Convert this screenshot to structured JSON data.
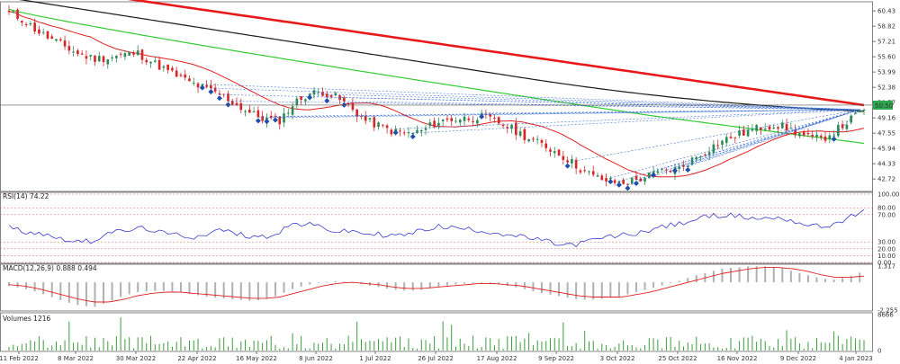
{
  "colors": {
    "up": "#2e8b57",
    "down": "#d62728",
    "ma_red": "#e8191a",
    "ma_black": "#1a1a1a",
    "ma_green": "#33cc33",
    "ma_red_thin": "#e02020",
    "rsi": "#3a3ad0",
    "macd_hist": "#b0b0b0",
    "macd_signal": "#e02020",
    "volume": "#3d9c3d",
    "grid": "#c8c8c8",
    "ref": "#e06060",
    "current_price_bg": "#2ea84e"
  },
  "chart_data": [
    {
      "type": "candlestick",
      "panel": "price",
      "y_ticks": [
        "60.43",
        "58.82",
        "57.21",
        "55.60",
        "53.99",
        "52.38",
        "50.77",
        "49.16",
        "47.55",
        "45.94",
        "44.33",
        "42.72"
      ],
      "ylim": [
        41.5,
        61.2
      ],
      "current_price": "50.50",
      "current_price_value": 50.5,
      "overlays": [
        "SMA red (long)",
        "SMA black",
        "SMA green",
        "SMA red (short)"
      ],
      "dates": [
        "11 Feb 2022",
        "8 Mar 2022",
        "30 Mar 2022",
        "22 Apr 2022",
        "16 May 2022",
        "8 Jun 2022",
        "1 Jul 2022",
        "26 Jul 2022",
        "17 Aug 2022",
        "9 Sep 2022",
        "3 Oct 2022",
        "25 Oct 2022",
        "16 Nov 2022",
        "9 Dec 2022",
        "4 Jan 2023"
      ],
      "close_anchors": [
        60.2,
        59.5,
        58.3,
        57.4,
        56.6,
        55.8,
        55.4,
        55.5,
        55.8,
        56.0,
        55.1,
        54.2,
        53.4,
        52.7,
        52.1,
        51.5,
        50.5,
        49.6,
        49.0,
        48.9,
        50.7,
        51.7,
        51.9,
        51.3,
        50.2,
        48.9,
        48.3,
        47.7,
        47.5,
        47.8,
        48.7,
        49.0,
        49.1,
        49.3,
        48.9,
        48.2,
        47.4,
        46.6,
        45.9,
        45.0,
        43.9,
        43.0,
        42.5,
        42.3,
        42.6,
        43.1,
        43.6,
        43.8,
        44.8,
        45.8,
        46.7,
        47.3,
        47.8,
        48.3,
        48.4,
        47.8,
        47.1,
        46.9,
        47.8,
        48.9,
        50.2
      ]
    },
    {
      "type": "line",
      "panel": "rsi",
      "title": "RSI(14) 74.22",
      "indicator": "RSI(14)",
      "last": "74.22",
      "y_ticks": [
        "100.00",
        "80.00",
        "70.00",
        "30.00",
        "20.00",
        "10.00",
        "0.00"
      ],
      "ylim": [
        0,
        100
      ],
      "values": [
        52,
        45,
        44,
        38,
        34,
        30,
        32,
        46,
        44,
        50,
        48,
        41,
        40,
        37,
        43,
        48,
        41,
        39,
        37,
        46,
        57,
        55,
        52,
        44,
        46,
        42,
        41,
        39,
        41,
        47,
        53,
        51,
        49,
        47,
        44,
        41,
        37,
        34,
        29,
        25,
        27,
        33,
        37,
        40,
        42,
        48,
        53,
        56,
        62,
        67,
        70,
        68,
        65,
        64,
        66,
        61,
        55,
        52,
        57,
        66,
        74
      ]
    },
    {
      "type": "bar+line",
      "panel": "macd",
      "title": "MACD(12,26,9) 0.888 0.494",
      "indicator": "MACD(12,26,9)",
      "macd_last": "0.888",
      "signal_last": "0.494",
      "y_ticks": [
        "1.317",
        "-2.255"
      ],
      "ylim": [
        -2.255,
        1.317
      ],
      "hist": [
        -0.3,
        -0.5,
        -0.8,
        -1.2,
        -1.6,
        -1.9,
        -2.0,
        -1.6,
        -1.1,
        -0.8,
        -0.7,
        -0.7,
        -0.8,
        -1.0,
        -1.2,
        -1.3,
        -1.4,
        -1.5,
        -1.4,
        -1.0,
        -0.5,
        -0.2,
        0.0,
        0.1,
        0.0,
        -0.2,
        -0.4,
        -0.6,
        -0.7,
        -0.6,
        -0.4,
        -0.2,
        -0.1,
        0.0,
        -0.1,
        -0.3,
        -0.5,
        -0.8,
        -1.0,
        -1.2,
        -1.4,
        -1.4,
        -1.3,
        -1.1,
        -0.8,
        -0.5,
        -0.2,
        0.1,
        0.5,
        0.8,
        1.1,
        1.2,
        1.3,
        1.3,
        1.2,
        0.9,
        0.6,
        0.3,
        0.2,
        0.5,
        0.9
      ],
      "signal": [
        -0.2,
        -0.3,
        -0.5,
        -0.8,
        -1.1,
        -1.4,
        -1.6,
        -1.6,
        -1.4,
        -1.1,
        -0.9,
        -0.8,
        -0.8,
        -0.9,
        -1.0,
        -1.1,
        -1.2,
        -1.3,
        -1.3,
        -1.2,
        -0.9,
        -0.6,
        -0.3,
        -0.1,
        0.0,
        -0.1,
        -0.2,
        -0.4,
        -0.5,
        -0.5,
        -0.4,
        -0.3,
        -0.2,
        -0.1,
        -0.1,
        -0.2,
        -0.3,
        -0.5,
        -0.7,
        -0.9,
        -1.1,
        -1.2,
        -1.2,
        -1.2,
        -1.0,
        -0.8,
        -0.5,
        -0.2,
        0.1,
        0.4,
        0.7,
        0.9,
        1.1,
        1.2,
        1.2,
        1.1,
        0.9,
        0.6,
        0.4,
        0.4,
        0.5
      ]
    },
    {
      "type": "bar",
      "panel": "volume",
      "title": "Volumes 1216",
      "indicator": "Volumes",
      "last": "1216",
      "y_ticks": [
        "8666",
        "0"
      ],
      "ylim": [
        0,
        8666
      ]
    }
  ]
}
